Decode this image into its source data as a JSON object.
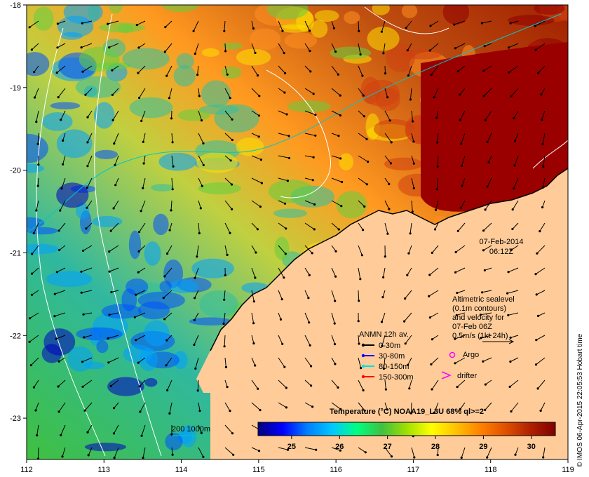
{
  "map": {
    "lon_ticks": [
      "112",
      "113",
      "114",
      "115",
      "116",
      "117",
      "118",
      "119"
    ],
    "lat_ticks": [
      "-18",
      "-19",
      "-20",
      "-21",
      "-22",
      "-23"
    ],
    "lon_range": [
      112,
      119
    ],
    "lat_range": [
      -23.5,
      -18
    ]
  },
  "datetime": {
    "date": "07-Feb-2014",
    "time": "06:12Z"
  },
  "altimetry": {
    "line1": "Altimetric sealevel",
    "line2": "(0.1m contours)",
    "line3": "and velocity for",
    "line4": "07-Feb 06Z",
    "line5": "0.5m/s (1kt 24h)"
  },
  "anmn": {
    "title": "ANMN 12h av.",
    "items": [
      {
        "label": "0-30m",
        "color": "#000000"
      },
      {
        "label": "30-80m",
        "color": "#0000ff"
      },
      {
        "label": "80-150m",
        "color": "#00e0e0"
      },
      {
        "label": "150-300m",
        "color": "#ff0000"
      }
    ]
  },
  "markers": {
    "argo": "Argo",
    "argo_color": "#ff00ff",
    "drifter": "drifter",
    "drifter_color": "#ff00ff"
  },
  "isobath": {
    "label": "200  1000m",
    "color": "#00c8c8"
  },
  "colorbar": {
    "title": "Temperature (°C) NOAA19_L3U 68% ql>=2",
    "ticks": [
      "25",
      "26",
      "27",
      "28",
      "29",
      "30"
    ],
    "range": [
      24.3,
      30.5
    ],
    "colors": [
      "#00007f",
      "#0000ff",
      "#0080ff",
      "#00c8ff",
      "#00ff80",
      "#40c040",
      "#a0e000",
      "#ffff00",
      "#ffc000",
      "#ff8000",
      "#e05000",
      "#b02000",
      "#800000"
    ]
  },
  "credit": "© IMOS 06-Apr-2015 22:05:53 Hobart time",
  "colors": {
    "land": "#ffcc99",
    "warm_sea": "#9b0000",
    "cool_sea": "#2aa0e0"
  }
}
